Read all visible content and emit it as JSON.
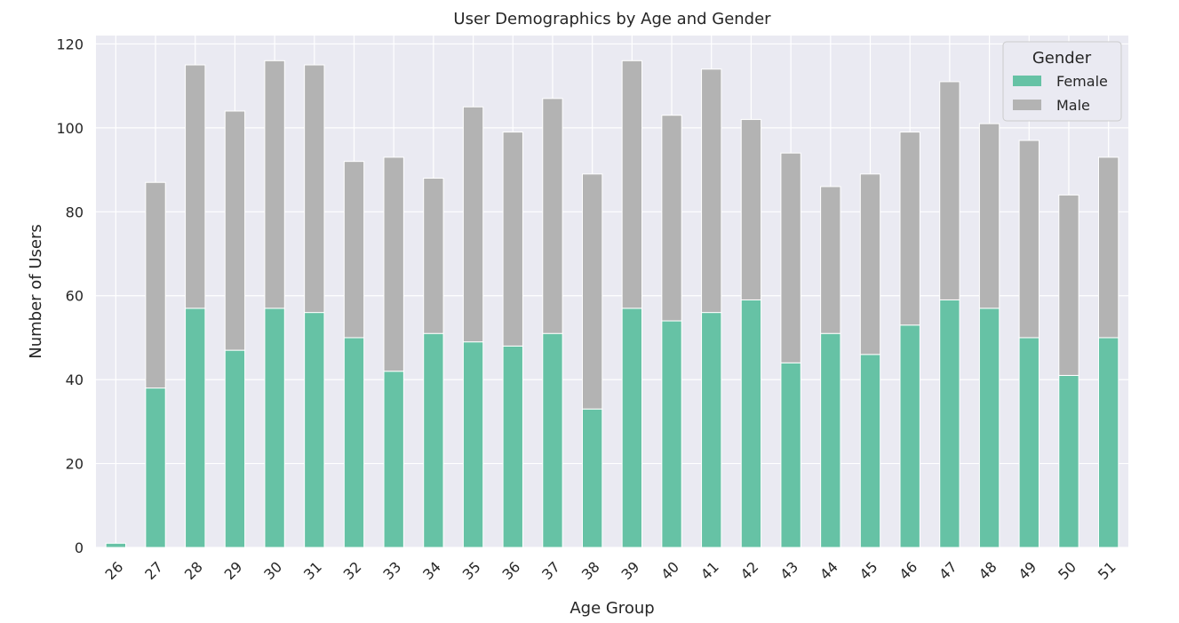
{
  "chart_data": {
    "type": "bar",
    "stacked": true,
    "title": "User Demographics by Age and Gender",
    "xlabel": "Age Group",
    "ylabel": "Number of Users",
    "ylim": [
      0,
      122
    ],
    "yticks": [
      0,
      20,
      40,
      60,
      80,
      100,
      120
    ],
    "grid": true,
    "legend": {
      "title": "Gender",
      "placement": "top-right"
    },
    "categories": [
      "26",
      "27",
      "28",
      "29",
      "30",
      "31",
      "32",
      "33",
      "34",
      "35",
      "36",
      "37",
      "38",
      "39",
      "40",
      "41",
      "42",
      "43",
      "44",
      "45",
      "46",
      "47",
      "48",
      "49",
      "50",
      "51"
    ],
    "series": [
      {
        "name": "Female",
        "color": "#66c2a5",
        "values": [
          1,
          38,
          57,
          47,
          57,
          56,
          50,
          42,
          51,
          49,
          48,
          51,
          33,
          57,
          54,
          56,
          59,
          44,
          51,
          46,
          53,
          59,
          57,
          50,
          41,
          50
        ]
      },
      {
        "name": "Male",
        "color": "#b3b3b3",
        "values": [
          0,
          49,
          58,
          57,
          59,
          59,
          42,
          51,
          37,
          56,
          51,
          56,
          56,
          59,
          49,
          58,
          43,
          50,
          35,
          43,
          46,
          52,
          44,
          47,
          43,
          43
        ]
      }
    ]
  }
}
